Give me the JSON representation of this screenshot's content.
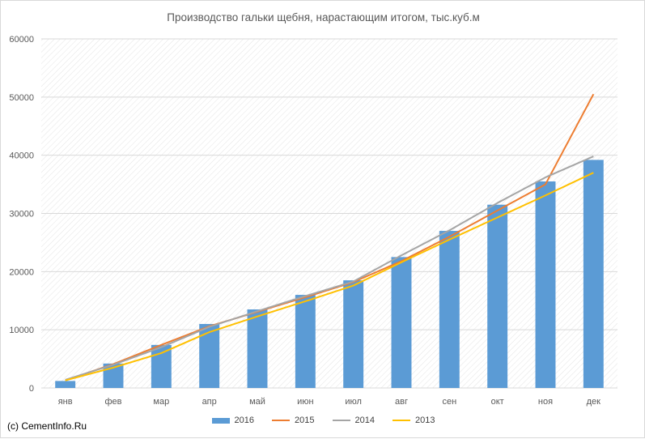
{
  "title": "Производство гальки щебня, нарастающим итогом, тыс.куб.м",
  "watermark": "(c) CementInfo.Ru",
  "colors": {
    "bar": "#5b9bd5",
    "line2015": "#ed7d31",
    "line2014": "#a5a5a5",
    "line2013": "#ffc000",
    "grid": "#d9d9d9"
  },
  "chart_data": {
    "type": "bar",
    "title": "Производство гальки щебня, нарастающим итогом, тыс.куб.м",
    "categories": [
      "янв",
      "фев",
      "мар",
      "апр",
      "май",
      "июн",
      "июл",
      "авг",
      "сен",
      "окт",
      "ноя",
      "дек"
    ],
    "ylim": [
      0,
      60000
    ],
    "yticks": [
      0,
      10000,
      20000,
      30000,
      40000,
      50000,
      60000
    ],
    "grid": true,
    "legend_position": "bottom",
    "series": [
      {
        "name": "2016",
        "type": "bar",
        "values": [
          1200,
          4200,
          7400,
          11000,
          13500,
          16000,
          18500,
          22500,
          27000,
          31500,
          35500,
          39200
        ]
      },
      {
        "name": "2015",
        "type": "line",
        "values": [
          1300,
          4100,
          7400,
          10600,
          13100,
          15600,
          18200,
          21800,
          26000,
          30500,
          35000,
          50500
        ]
      },
      {
        "name": "2014",
        "type": "line",
        "values": [
          1400,
          4000,
          7000,
          10500,
          13200,
          15800,
          18300,
          22800,
          27100,
          31800,
          36200,
          39800
        ]
      },
      {
        "name": "2013",
        "type": "line",
        "values": [
          1300,
          3500,
          6000,
          9600,
          12300,
          14900,
          17600,
          21600,
          25500,
          29300,
          33100,
          37000
        ]
      }
    ]
  }
}
